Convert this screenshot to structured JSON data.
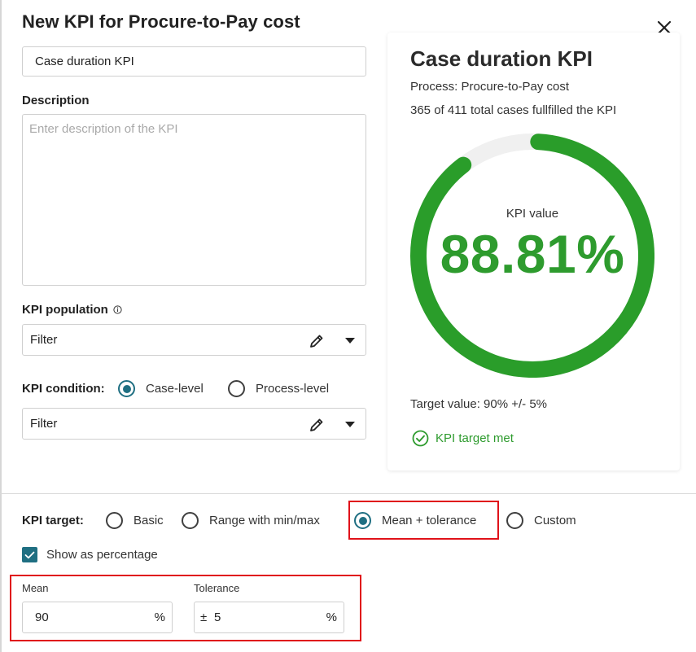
{
  "dialog": {
    "title": "New KPI for Procure-to-Pay cost",
    "close_icon": "close-icon"
  },
  "form": {
    "kpi_name_value": "Case duration KPI",
    "description_label": "Description",
    "description_placeholder": "Enter description of the KPI",
    "population_label": "KPI population",
    "population_filter_value": "Filter",
    "condition_label": "KPI condition:",
    "condition_options": [
      {
        "label": "Case-level",
        "selected": true
      },
      {
        "label": "Process-level",
        "selected": false
      }
    ],
    "condition_filter_value": "Filter"
  },
  "preview": {
    "title": "Case duration KPI",
    "process_text": "Process: Procure-to-Pay cost",
    "cases_text": "365 of 411 total cases fullfilled the KPI",
    "gauge_label": "KPI value",
    "gauge_value_text": "88.81%",
    "gauge_fraction": 0.8881,
    "target_text": "Target value: 90% +/- 5%",
    "status_text": "KPI target met",
    "colors": {
      "success": "#2e9b2e",
      "gauge_track": "#f0f0f0",
      "gauge_fill": "#2a9d2a"
    }
  },
  "target": {
    "label": "KPI target:",
    "options": [
      {
        "label": "Basic",
        "selected": false
      },
      {
        "label": "Range with min/max",
        "selected": false
      },
      {
        "label": "Mean + tolerance",
        "selected": true
      },
      {
        "label": "Custom",
        "selected": false
      }
    ],
    "show_percentage_label": "Show as percentage",
    "show_percentage_checked": true,
    "mean_label": "Mean",
    "mean_value": "90",
    "mean_unit": "%",
    "tolerance_label": "Tolerance",
    "tolerance_prefix": "±",
    "tolerance_value": "5",
    "tolerance_unit": "%"
  },
  "colors": {
    "accent": "#1f6f82",
    "highlight": "#e0121a"
  }
}
